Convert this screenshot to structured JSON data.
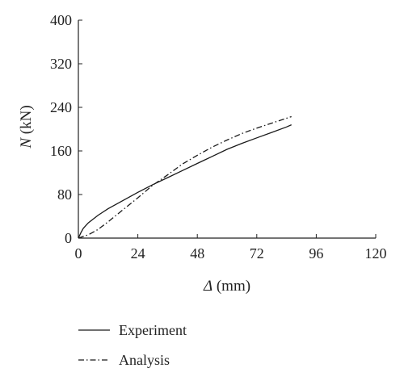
{
  "chart_data": {
    "type": "line",
    "title": "",
    "xlabel": {
      "symbol": "Δ",
      "unit": " (mm)"
    },
    "ylabel": {
      "symbol": "N",
      "unit": " (kN)"
    },
    "xlim": [
      0,
      120
    ],
    "ylim": [
      0,
      400
    ],
    "x_ticks": [
      "0",
      "24",
      "48",
      "72",
      "96",
      "120"
    ],
    "y_ticks": [
      "0",
      "80",
      "160",
      "240",
      "320",
      "400"
    ],
    "grid": false,
    "legend_position": "bottom-left",
    "series": [
      {
        "name": "Experiment",
        "style": "solid",
        "color": "#1a1a1a",
        "x": [
          0,
          1,
          2,
          4,
          8,
          12,
          18,
          24,
          30,
          36,
          42,
          48,
          54,
          60,
          66,
          72,
          78,
          84,
          86
        ],
        "y": [
          0,
          10,
          18,
          28,
          42,
          54,
          69,
          84,
          98,
          111,
          124,
          137,
          150,
          163,
          174,
          184,
          194,
          204,
          208
        ]
      },
      {
        "name": "Analysis",
        "style": "dash-dot",
        "color": "#1a1a1a",
        "x": [
          0,
          4,
          8,
          12,
          18,
          24,
          30,
          36,
          42,
          48,
          54,
          60,
          66,
          72,
          78,
          84,
          86
        ],
        "y": [
          0,
          6,
          16,
          30,
          52,
          74,
          97,
          116,
          136,
          152,
          167,
          180,
          192,
          202,
          211,
          220,
          223
        ]
      }
    ]
  }
}
